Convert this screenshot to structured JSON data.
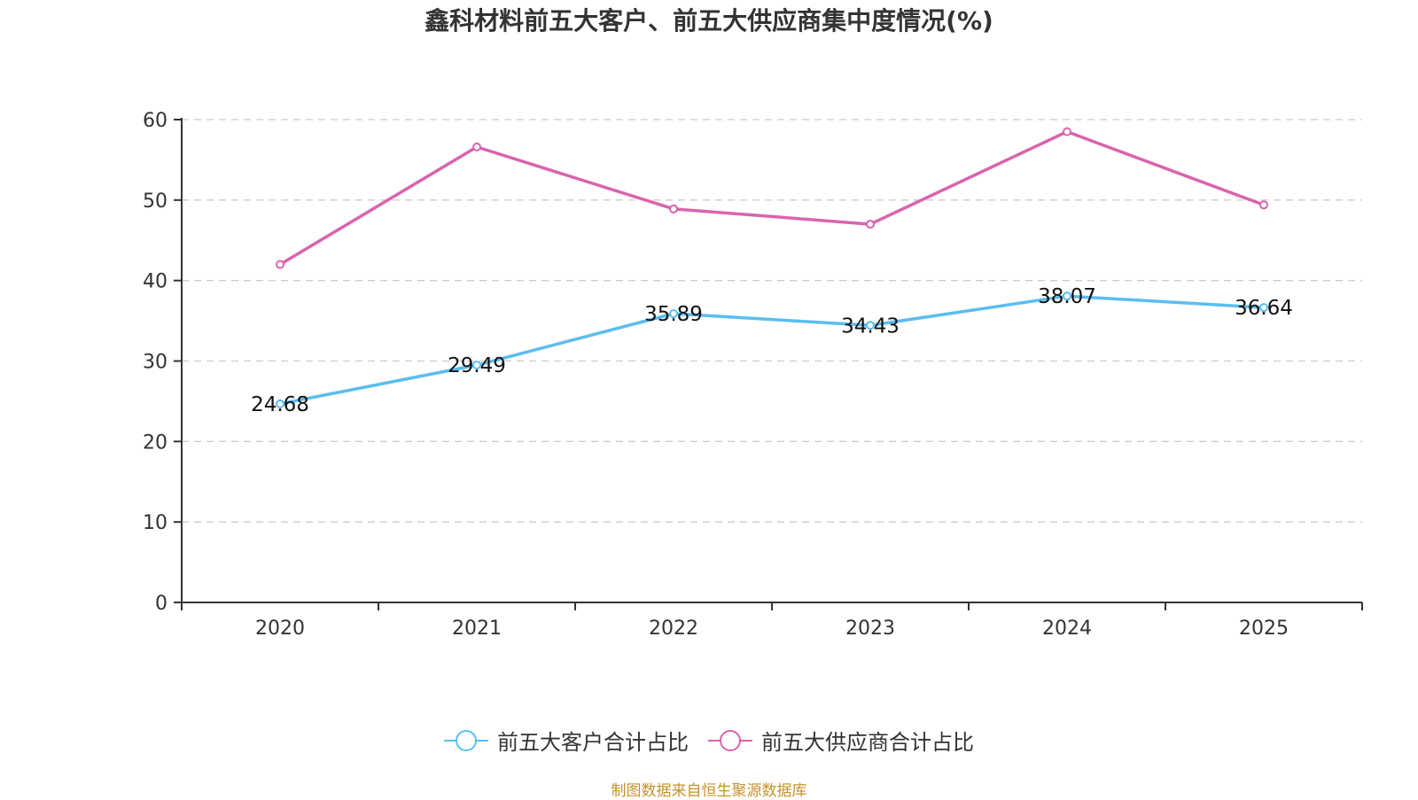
{
  "chart_data": {
    "type": "line",
    "title": "鑫科材料前五大客户、前五大供应商集中度情况(%)",
    "xlabel": "",
    "ylabel": "",
    "categories": [
      "2020",
      "2021",
      "2022",
      "2023",
      "2024",
      "2025"
    ],
    "ylim": [
      0,
      60
    ],
    "yticks": [
      "0",
      "10",
      "20",
      "30",
      "40",
      "50",
      "60"
    ],
    "grid": true,
    "legend_position": "bottom",
    "series": [
      {
        "name": "前五大客户合计占比",
        "color": "#5bbdf0",
        "values": [
          24.68,
          29.49,
          35.89,
          34.43,
          38.07,
          36.64
        ],
        "labels": [
          "24.68",
          "29.49",
          "35.89",
          "34.43",
          "38.07",
          "36.64"
        ],
        "show_labels": true
      },
      {
        "name": "前五大供应商合计占比",
        "color": "#d964ae",
        "values": [
          42.0,
          56.6,
          48.9,
          47.0,
          58.5,
          49.4
        ],
        "show_labels": false
      }
    ],
    "source": "制图数据来自恒生聚源数据库"
  }
}
